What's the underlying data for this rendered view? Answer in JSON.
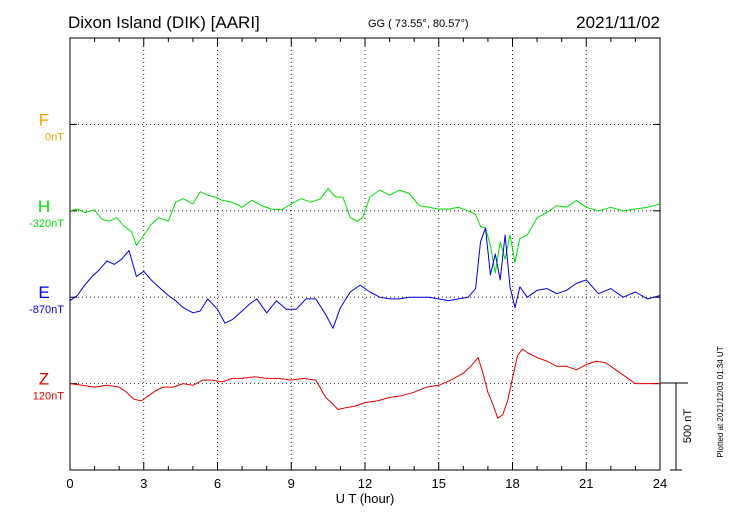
{
  "header": {
    "station": "Dixon Island (DIK)  [AARI]",
    "coords": "GG ( 73.55°,  80.57°)",
    "date": "2021/11/02"
  },
  "footer": {
    "plotted": "Plotted at 2021/12/03 01:34 UT",
    "scale_label": "500 nT"
  },
  "chart_data": {
    "type": "line",
    "xlabel": "U T (hour)",
    "xlim": [
      0,
      24
    ],
    "xticks": [
      0,
      3,
      6,
      9,
      12,
      15,
      18,
      21,
      24
    ],
    "grid": true,
    "scale_bar_nT": 500,
    "series": [
      {
        "name": "F",
        "baseline_label": "0nT",
        "color": "#f0a000",
        "baseline_index": 1,
        "x": [],
        "y": []
      },
      {
        "name": "H",
        "baseline_label": "-320nT",
        "color": "#00e000",
        "baseline_index": 2,
        "x": [
          0,
          0.3,
          0.6,
          1.0,
          1.3,
          1.6,
          1.9,
          2.2,
          2.5,
          2.7,
          3.0,
          3.3,
          3.6,
          4.0,
          4.3,
          4.6,
          5.0,
          5.3,
          5.6,
          5.9,
          6.2,
          6.6,
          7.0,
          7.4,
          7.8,
          8.2,
          8.6,
          9.0,
          9.4,
          9.8,
          10.2,
          10.5,
          10.8,
          11.1,
          11.4,
          11.7,
          11.9,
          12.2,
          12.6,
          13.0,
          13.4,
          13.8,
          14.2,
          14.6,
          15.0,
          15.4,
          15.8,
          16.2,
          16.5,
          16.7,
          16.9,
          17.1,
          17.3,
          17.5,
          17.7,
          17.9,
          18.1,
          18.3,
          18.6,
          19.0,
          19.4,
          19.8,
          20.2,
          20.6,
          21.0,
          21.5,
          22.0,
          22.5,
          23.0,
          23.5,
          24.0
        ],
        "y": [
          0,
          10,
          -10,
          5,
          -50,
          -60,
          -40,
          -90,
          -120,
          -200,
          -140,
          -80,
          -40,
          -60,
          50,
          70,
          40,
          110,
          90,
          80,
          60,
          50,
          20,
          60,
          30,
          10,
          5,
          40,
          70,
          50,
          70,
          130,
          80,
          80,
          -40,
          -60,
          -40,
          80,
          120,
          90,
          120,
          100,
          30,
          20,
          10,
          10,
          20,
          0,
          -20,
          -90,
          -100,
          -200,
          -360,
          -180,
          -280,
          -140,
          -300,
          -160,
          -140,
          -40,
          -10,
          30,
          20,
          60,
          20,
          0,
          20,
          0,
          10,
          20,
          40
        ]
      },
      {
        "name": "E",
        "baseline_label": "-870nT",
        "color": "#0000e0",
        "baseline_index": 3,
        "x": [
          0,
          0.3,
          0.6,
          0.9,
          1.2,
          1.5,
          1.8,
          2.1,
          2.4,
          2.7,
          3.0,
          3.3,
          3.6,
          4.0,
          4.3,
          4.6,
          5.0,
          5.3,
          5.6,
          6.0,
          6.3,
          6.6,
          7.0,
          7.3,
          7.6,
          8.0,
          8.4,
          8.8,
          9.2,
          9.6,
          10.0,
          10.4,
          10.7,
          11.0,
          11.4,
          11.8,
          12.2,
          12.6,
          13.0,
          13.4,
          13.8,
          14.2,
          14.6,
          15.0,
          15.4,
          15.8,
          16.2,
          16.5,
          16.7,
          16.9,
          17.1,
          17.3,
          17.5,
          17.7,
          17.9,
          18.1,
          18.3,
          18.6,
          19.0,
          19.4,
          19.8,
          20.2,
          20.6,
          21.0,
          21.5,
          22.0,
          22.5,
          23.0,
          23.5,
          24.0
        ],
        "y": [
          -20,
          10,
          70,
          120,
          160,
          210,
          190,
          220,
          270,
          120,
          150,
          100,
          60,
          10,
          -20,
          -60,
          -90,
          -80,
          -10,
          -70,
          -150,
          -130,
          -80,
          -40,
          -10,
          -90,
          -20,
          -70,
          -70,
          -10,
          -10,
          -100,
          -180,
          -60,
          30,
          70,
          30,
          0,
          -10,
          -10,
          0,
          0,
          0,
          -10,
          -20,
          -10,
          0,
          50,
          320,
          400,
          130,
          250,
          100,
          360,
          60,
          -60,
          60,
          0,
          40,
          50,
          20,
          40,
          80,
          100,
          20,
          50,
          0,
          30,
          -10,
          10
        ]
      },
      {
        "name": "Z",
        "baseline_label": "120nT",
        "color": "#e00000",
        "baseline_index": 4,
        "x": [
          0,
          0.5,
          1.0,
          1.5,
          2.0,
          2.3,
          2.6,
          2.9,
          3.2,
          3.5,
          3.8,
          4.2,
          4.6,
          5.0,
          5.4,
          5.8,
          6.2,
          6.6,
          7.0,
          7.5,
          8.0,
          8.5,
          9.0,
          9.5,
          10.0,
          10.4,
          10.7,
          10.9,
          11.2,
          11.6,
          12.0,
          12.5,
          13.0,
          13.5,
          14.0,
          14.5,
          15.0,
          15.5,
          16.0,
          16.3,
          16.6,
          16.8,
          17.0,
          17.2,
          17.4,
          17.6,
          17.8,
          18.0,
          18.2,
          18.4,
          18.6,
          19.0,
          19.4,
          19.8,
          20.2,
          20.6,
          21.0,
          21.4,
          21.8,
          22.2,
          22.6,
          23.0,
          23.5,
          24.0
        ],
        "y": [
          0,
          -10,
          -20,
          -10,
          -20,
          -50,
          -90,
          -100,
          -70,
          -40,
          -20,
          -20,
          0,
          -10,
          20,
          20,
          10,
          30,
          30,
          40,
          30,
          30,
          20,
          30,
          20,
          -80,
          -120,
          -150,
          -140,
          -130,
          -110,
          -100,
          -80,
          -70,
          -50,
          -20,
          -10,
          20,
          60,
          100,
          150,
          60,
          -50,
          -120,
          -200,
          -180,
          -100,
          30,
          160,
          200,
          180,
          150,
          130,
          100,
          100,
          80,
          110,
          130,
          120,
          80,
          40,
          0,
          0,
          0
        ]
      }
    ]
  }
}
